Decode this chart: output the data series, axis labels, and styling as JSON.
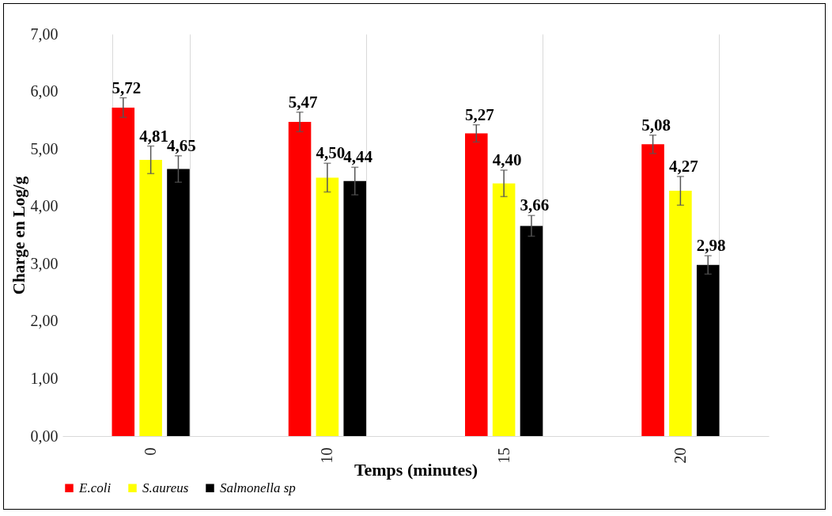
{
  "chart_data": {
    "type": "bar",
    "xlabel": "Temps (minutes)",
    "ylabel": "Charge en Log/g",
    "categories": [
      "0",
      "10",
      "15",
      "20"
    ],
    "series": [
      {
        "name": "E.coli",
        "color": "#ff0000",
        "values": [
          5.72,
          5.47,
          5.27,
          5.08
        ],
        "errors": [
          0.17,
          0.17,
          0.15,
          0.16
        ],
        "value_labels": [
          "5,72",
          "5,47",
          "5,27",
          "5,08"
        ]
      },
      {
        "name": "S.aureus",
        "color": "#ffff00",
        "values": [
          4.81,
          4.5,
          4.4,
          4.27
        ],
        "errors": [
          0.24,
          0.25,
          0.23,
          0.25
        ],
        "value_labels": [
          "4,81",
          "4,50",
          "4,40",
          "4,27"
        ]
      },
      {
        "name": "Salmonella sp",
        "color": "#000000",
        "values": [
          4.65,
          4.44,
          3.66,
          2.98
        ],
        "errors": [
          0.23,
          0.24,
          0.18,
          0.16
        ],
        "value_labels": [
          "4,65",
          "4,44",
          "3,66",
          "2,98"
        ]
      }
    ],
    "ylim": [
      0,
      7
    ],
    "yticks": [
      {
        "value": 0,
        "label": "0,00"
      },
      {
        "value": 1,
        "label": "1,00"
      },
      {
        "value": 2,
        "label": "2,00"
      },
      {
        "value": 3,
        "label": "3,00"
      },
      {
        "value": 4,
        "label": "4,00"
      },
      {
        "value": 5,
        "label": "5,00"
      },
      {
        "value": 6,
        "label": "6,00"
      },
      {
        "value": 7,
        "label": "7,00"
      }
    ],
    "grid": "x",
    "legend": "bottom"
  }
}
